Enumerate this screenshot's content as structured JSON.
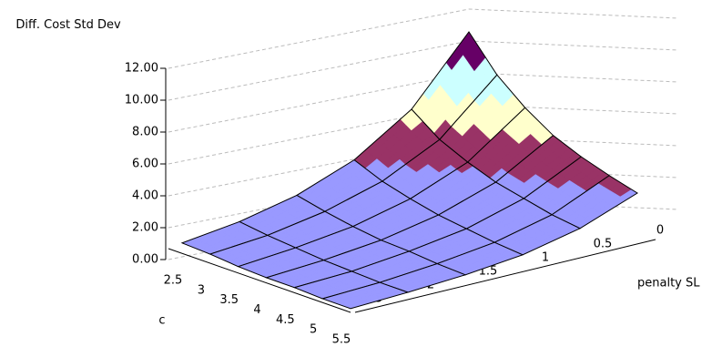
{
  "chart_data": {
    "type": "surface",
    "z_label": "Diff. Cost Std Dev",
    "x_label": "c",
    "y_label": "penalty SL",
    "x": [
      2.5,
      3,
      3.5,
      4,
      4.5,
      5,
      5.5
    ],
    "y": [
      0,
      0.5,
      1,
      1.5,
      2,
      2.5
    ],
    "values": [
      [
        12,
        7,
        4.1,
        2.4,
        1.4,
        0.8
      ],
      [
        9.4,
        5.4,
        3.2,
        1.9,
        1.1,
        0.7
      ],
      [
        7.6,
        4.4,
        2.6,
        1.5,
        0.9,
        0.5
      ],
      [
        6.2,
        3.6,
        2.1,
        1.2,
        0.7,
        0.4
      ],
      [
        5.3,
        3.1,
        1.8,
        1.1,
        0.6,
        0.4
      ],
      [
        4.6,
        2.6,
        1.5,
        0.9,
        0.5,
        0.3
      ],
      [
        4.0,
        2.3,
        1.3,
        0.8,
        0.5,
        0.3
      ]
    ],
    "xlim": [
      2.5,
      5.5
    ],
    "ylim": [
      0,
      2.5
    ],
    "zlim": [
      0,
      12
    ],
    "xticks": [
      2.5,
      3,
      3.5,
      4,
      4.5,
      5,
      5.5
    ],
    "yticks": [
      0,
      0.5,
      1,
      1.5,
      2,
      2.5
    ],
    "zticks": [
      {
        "value": 0,
        "label": "0.00"
      },
      {
        "value": 2,
        "label": "2.00"
      },
      {
        "value": 4,
        "label": "4.00"
      },
      {
        "value": 6,
        "label": "6.00"
      },
      {
        "value": 8,
        "label": "8.00"
      },
      {
        "value": 10,
        "label": "10.00"
      },
      {
        "value": 12,
        "label": "12.00"
      }
    ],
    "band_colors": [
      "#9999ff",
      "#9999ff",
      "#993366",
      "#ffffcc",
      "#ccffff",
      "#660066"
    ],
    "grid": true
  }
}
